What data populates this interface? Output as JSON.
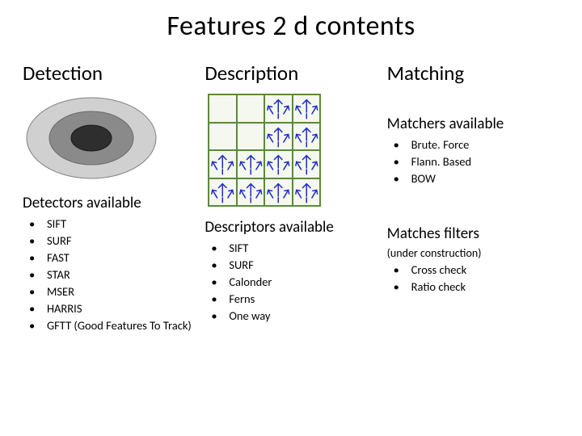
{
  "title": "Features 2 d contents",
  "columns": {
    "detection": {
      "heading": "Detection",
      "sub": "Detectors available",
      "items": [
        "SIFT",
        "SURF",
        "FAST",
        "STAR",
        "MSER",
        "HARRIS",
        "GFTT (Good Features To Track)"
      ],
      "ellipse": {
        "rings": [
          {
            "rx": 80,
            "ry": 50,
            "fill": "#d0d0d0",
            "stroke": "#808080"
          },
          {
            "rx": 52,
            "ry": 33,
            "fill": "#8a8a8a",
            "stroke": "#6a6a6a"
          },
          {
            "rx": 25,
            "ry": 16,
            "fill": "#2e2e2e",
            "stroke": "#1a1a1a"
          }
        ]
      }
    },
    "description": {
      "heading": "Description",
      "sub": "Descriptors available",
      "items": [
        "SIFT",
        "SURF",
        "Calonder",
        "Ferns",
        "One way"
      ],
      "grid": {
        "arrow_color": "#2030c0",
        "border_color": "#5a8a3a",
        "bg_color": "#f4f8ee",
        "filled_cells": [
          [
            0,
            2
          ],
          [
            0,
            3
          ],
          [
            1,
            2
          ],
          [
            1,
            3
          ],
          [
            2,
            0
          ],
          [
            2,
            1
          ],
          [
            2,
            2
          ],
          [
            2,
            3
          ],
          [
            3,
            0
          ],
          [
            3,
            1
          ],
          [
            3,
            2
          ],
          [
            3,
            3
          ]
        ]
      }
    },
    "matching": {
      "heading": "Matching",
      "matchers_sub": "Matchers available",
      "matchers": [
        "Brute. Force",
        "Flann. Based",
        "BOW"
      ],
      "filters_sub": "Matches filters",
      "filters_note": "(under construction)",
      "filters": [
        "Cross check",
        "Ratio check"
      ]
    }
  }
}
